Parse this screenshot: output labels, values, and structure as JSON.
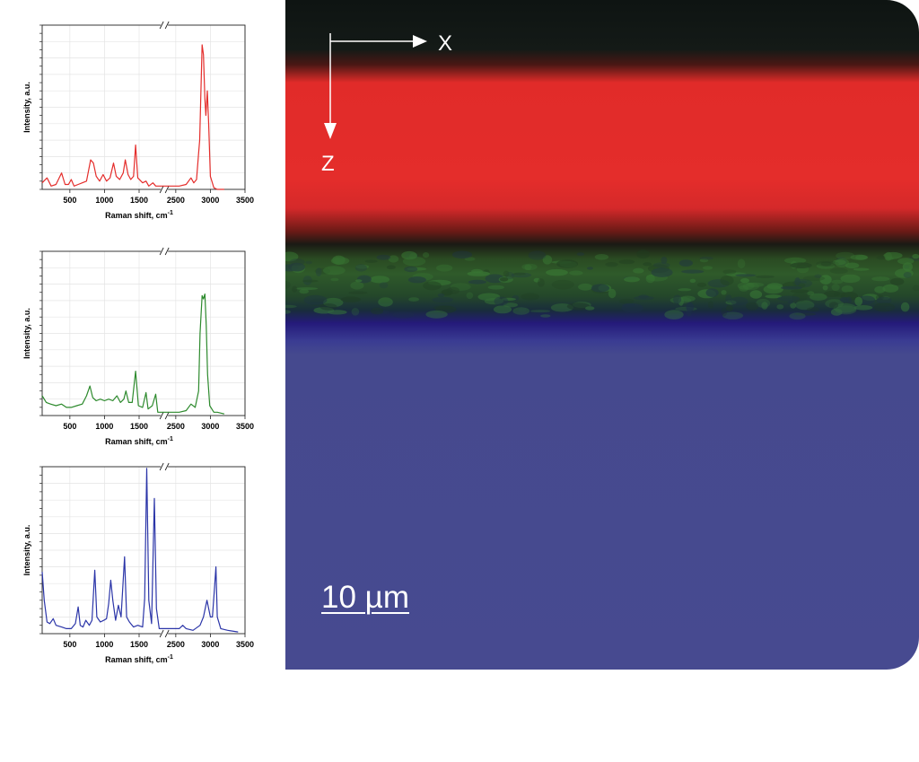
{
  "chart_data": [
    {
      "type": "line",
      "title": "",
      "xlabel": "Raman shift, cm",
      "xlabel_superscript": "-1",
      "ylabel": "Intensity, a.u.",
      "x_ticks": [
        500,
        1000,
        1500,
        2500,
        3000,
        3500
      ],
      "xlim": [
        100,
        3500
      ],
      "axis_break": [
        1800,
        2400
      ],
      "ylim": [
        0,
        1
      ],
      "grid": true,
      "series": [
        {
          "color": "#e42d2b",
          "points": [
            [
              100,
              0.04
            ],
            [
              170,
              0.07
            ],
            [
              230,
              0.02
            ],
            [
              300,
              0.03
            ],
            [
              380,
              0.1
            ],
            [
              430,
              0.03
            ],
            [
              480,
              0.03
            ],
            [
              520,
              0.06
            ],
            [
              560,
              0.02
            ],
            [
              620,
              0.03
            ],
            [
              680,
              0.04
            ],
            [
              740,
              0.05
            ],
            [
              800,
              0.18
            ],
            [
              840,
              0.16
            ],
            [
              880,
              0.08
            ],
            [
              930,
              0.05
            ],
            [
              980,
              0.09
            ],
            [
              1030,
              0.05
            ],
            [
              1080,
              0.07
            ],
            [
              1130,
              0.16
            ],
            [
              1170,
              0.08
            ],
            [
              1220,
              0.06
            ],
            [
              1270,
              0.1
            ],
            [
              1300,
              0.18
            ],
            [
              1340,
              0.09
            ],
            [
              1380,
              0.06
            ],
            [
              1420,
              0.08
            ],
            [
              1450,
              0.27
            ],
            [
              1480,
              0.07
            ],
            [
              1550,
              0.04
            ],
            [
              1600,
              0.05
            ],
            [
              1640,
              0.02
            ],
            [
              1700,
              0.04
            ],
            [
              1740,
              0.02
            ],
            [
              1800,
              0.02
            ],
            [
              2400,
              0.02
            ],
            [
              2550,
              0.02
            ],
            [
              2650,
              0.03
            ],
            [
              2720,
              0.07
            ],
            [
              2760,
              0.04
            ],
            [
              2800,
              0.06
            ],
            [
              2830,
              0.22
            ],
            [
              2845,
              0.3
            ],
            [
              2880,
              0.88
            ],
            [
              2900,
              0.82
            ],
            [
              2920,
              0.55
            ],
            [
              2935,
              0.45
            ],
            [
              2955,
              0.6
            ],
            [
              2975,
              0.4
            ],
            [
              3000,
              0.08
            ],
            [
              3050,
              0.01
            ],
            [
              3100,
              0.0
            ],
            [
              3200,
              0.0
            ]
          ]
        }
      ]
    },
    {
      "type": "line",
      "title": "",
      "xlabel": "Raman shift, cm",
      "xlabel_superscript": "-1",
      "ylabel": "Intensity, a.u.",
      "x_ticks": [
        500,
        1000,
        1500,
        2500,
        3000,
        3500
      ],
      "xlim": [
        100,
        3500
      ],
      "axis_break": [
        1800,
        2400
      ],
      "ylim": [
        0,
        1
      ],
      "grid": true,
      "series": [
        {
          "color": "#2d8a2d",
          "points": [
            [
              100,
              0.12
            ],
            [
              160,
              0.08
            ],
            [
              220,
              0.07
            ],
            [
              300,
              0.06
            ],
            [
              380,
              0.07
            ],
            [
              450,
              0.05
            ],
            [
              520,
              0.05
            ],
            [
              600,
              0.06
            ],
            [
              680,
              0.07
            ],
            [
              740,
              0.12
            ],
            [
              790,
              0.18
            ],
            [
              830,
              0.11
            ],
            [
              880,
              0.09
            ],
            [
              940,
              0.1
            ],
            [
              1000,
              0.09
            ],
            [
              1060,
              0.1
            ],
            [
              1120,
              0.09
            ],
            [
              1180,
              0.12
            ],
            [
              1230,
              0.08
            ],
            [
              1280,
              0.1
            ],
            [
              1310,
              0.15
            ],
            [
              1350,
              0.08
            ],
            [
              1400,
              0.08
            ],
            [
              1450,
              0.27
            ],
            [
              1490,
              0.06
            ],
            [
              1550,
              0.05
            ],
            [
              1600,
              0.14
            ],
            [
              1630,
              0.04
            ],
            [
              1690,
              0.06
            ],
            [
              1740,
              0.13
            ],
            [
              1770,
              0.02
            ],
            [
              1800,
              0.02
            ],
            [
              2400,
              0.02
            ],
            [
              2550,
              0.02
            ],
            [
              2650,
              0.03
            ],
            [
              2720,
              0.07
            ],
            [
              2780,
              0.05
            ],
            [
              2830,
              0.15
            ],
            [
              2850,
              0.5
            ],
            [
              2880,
              0.73
            ],
            [
              2900,
              0.71
            ],
            [
              2920,
              0.74
            ],
            [
              2940,
              0.55
            ],
            [
              2960,
              0.25
            ],
            [
              2990,
              0.06
            ],
            [
              3050,
              0.02
            ],
            [
              3100,
              0.02
            ],
            [
              3200,
              0.01
            ]
          ]
        }
      ]
    },
    {
      "type": "line",
      "title": "",
      "xlabel": "Raman shift, cm",
      "xlabel_superscript": "-1",
      "ylabel": "Intensity, a.u.",
      "x_ticks": [
        500,
        1000,
        1500,
        2500,
        3000,
        3500
      ],
      "xlim": [
        100,
        3500
      ],
      "axis_break": [
        1800,
        2400
      ],
      "ylim": [
        0,
        1
      ],
      "grid": true,
      "series": [
        {
          "color": "#2b35a8",
          "points": [
            [
              100,
              0.37
            ],
            [
              130,
              0.2
            ],
            [
              170,
              0.07
            ],
            [
              210,
              0.06
            ],
            [
              260,
              0.09
            ],
            [
              300,
              0.05
            ],
            [
              380,
              0.04
            ],
            [
              450,
              0.03
            ],
            [
              520,
              0.03
            ],
            [
              580,
              0.06
            ],
            [
              620,
              0.16
            ],
            [
              650,
              0.05
            ],
            [
              690,
              0.04
            ],
            [
              730,
              0.08
            ],
            [
              780,
              0.05
            ],
            [
              820,
              0.08
            ],
            [
              860,
              0.38
            ],
            [
              890,
              0.1
            ],
            [
              940,
              0.07
            ],
            [
              990,
              0.08
            ],
            [
              1030,
              0.09
            ],
            [
              1060,
              0.18
            ],
            [
              1090,
              0.32
            ],
            [
              1120,
              0.2
            ],
            [
              1160,
              0.08
            ],
            [
              1200,
              0.17
            ],
            [
              1240,
              0.1
            ],
            [
              1290,
              0.46
            ],
            [
              1320,
              0.1
            ],
            [
              1360,
              0.07
            ],
            [
              1420,
              0.04
            ],
            [
              1480,
              0.05
            ],
            [
              1550,
              0.04
            ],
            [
              1580,
              0.21
            ],
            [
              1610,
              0.99
            ],
            [
              1640,
              0.2
            ],
            [
              1680,
              0.06
            ],
            [
              1720,
              0.81
            ],
            [
              1750,
              0.15
            ],
            [
              1790,
              0.03
            ],
            [
              1800,
              0.03
            ],
            [
              2400,
              0.03
            ],
            [
              2550,
              0.03
            ],
            [
              2600,
              0.05
            ],
            [
              2650,
              0.03
            ],
            [
              2750,
              0.02
            ],
            [
              2850,
              0.05
            ],
            [
              2900,
              0.1
            ],
            [
              2950,
              0.2
            ],
            [
              2980,
              0.14
            ],
            [
              3000,
              0.1
            ],
            [
              3030,
              0.1
            ],
            [
              3060,
              0.28
            ],
            [
              3080,
              0.4
            ],
            [
              3100,
              0.1
            ],
            [
              3150,
              0.03
            ],
            [
              3250,
              0.02
            ],
            [
              3400,
              0.01
            ]
          ]
        }
      ]
    }
  ],
  "map": {
    "axis_x_label": "X",
    "axis_z_label": "Z",
    "scale_bar_label": "10 µm",
    "layer_colors": [
      "#101614",
      "#e42d2b",
      "#2f5a2a",
      "#2a1f82",
      "#474a90"
    ]
  }
}
